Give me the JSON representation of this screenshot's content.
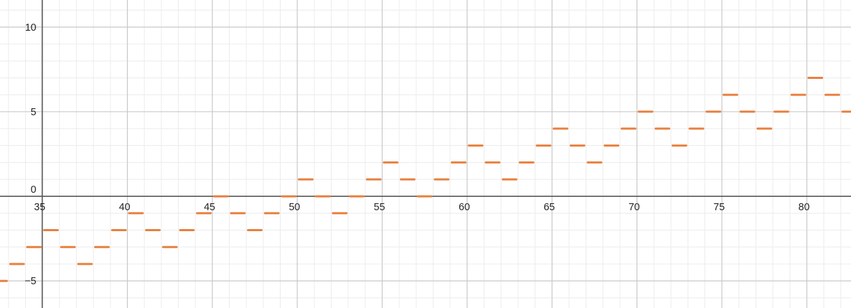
{
  "chart_data": {
    "type": "scatter",
    "style": "step-segments",
    "title": "",
    "xlabel": "",
    "ylabel": "",
    "xlim": [
      32.5,
      82.6
    ],
    "ylim": [
      -6.6,
      11.6
    ],
    "grid": true,
    "minor_grid": true,
    "x_ticks": [
      35,
      40,
      45,
      50,
      55,
      60,
      65,
      70,
      75,
      80
    ],
    "y_ticks": [
      -5,
      0,
      5,
      10
    ],
    "x_tick_labels": [
      "35",
      "40",
      "45",
      "50",
      "55",
      "60",
      "65",
      "70",
      "75",
      "80"
    ],
    "y_tick_labels": [
      "−5",
      "0",
      "5",
      "10"
    ],
    "series": [
      {
        "color": "#e8803e",
        "segment_width": 1,
        "x": [
          32,
          33,
          34,
          35,
          36,
          37,
          38,
          39,
          40,
          41,
          42,
          43,
          44,
          45,
          46,
          47,
          48,
          49,
          50,
          51,
          52,
          53,
          54,
          55,
          56,
          57,
          58,
          59,
          60,
          61,
          62,
          63,
          64,
          65,
          66,
          67,
          68,
          69,
          70,
          71,
          72,
          73,
          74,
          75,
          76,
          77,
          78,
          79,
          80,
          81,
          82
        ],
        "y": [
          -5,
          -4,
          -3,
          -2,
          -3,
          -4,
          -3,
          -2,
          -1,
          -2,
          -3,
          -2,
          -1,
          0,
          -1,
          -2,
          -1,
          0,
          1,
          0,
          -1,
          0,
          1,
          2,
          1,
          0,
          1,
          2,
          3,
          2,
          1,
          2,
          3,
          4,
          3,
          2,
          3,
          4,
          5,
          4,
          3,
          4,
          5,
          6,
          5,
          4,
          5,
          6,
          7,
          6,
          5
        ]
      }
    ]
  },
  "colors": {
    "axis": "#555555",
    "major_grid": "#c8c8c8",
    "minor_grid": "#ececec",
    "series": "#e8803e"
  }
}
